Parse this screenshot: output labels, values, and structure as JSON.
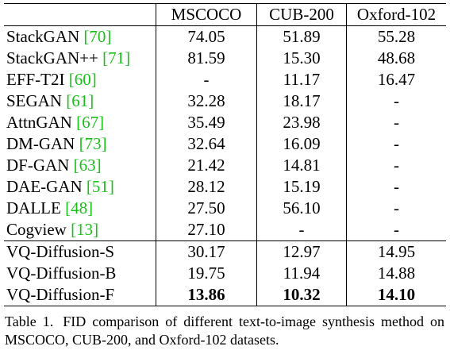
{
  "table": {
    "header": [
      "",
      "MSCOCO",
      "CUB-200",
      "Oxford-102"
    ],
    "groups": [
      [
        {
          "method": "StackGAN",
          "cite": "[70]",
          "mscoco": "74.05",
          "cub": "51.89",
          "oxford": "55.28",
          "best": []
        },
        {
          "method": "StackGAN++",
          "cite": "[71]",
          "mscoco": "81.59",
          "cub": "15.30",
          "oxford": "48.68",
          "best": []
        },
        {
          "method": "EFF-T2I",
          "cite": "[60]",
          "mscoco": "-",
          "cub": "11.17",
          "oxford": "16.47",
          "best": []
        },
        {
          "method": "SEGAN",
          "cite": "[61]",
          "mscoco": "32.28",
          "cub": "18.17",
          "oxford": "-",
          "best": []
        },
        {
          "method": "AttnGAN",
          "cite": "[67]",
          "mscoco": "35.49",
          "cub": "23.98",
          "oxford": "-",
          "best": []
        },
        {
          "method": "DM-GAN",
          "cite": "[73]",
          "mscoco": "32.64",
          "cub": "16.09",
          "oxford": "-",
          "best": []
        },
        {
          "method": "DF-GAN",
          "cite": "[63]",
          "mscoco": "21.42",
          "cub": "14.81",
          "oxford": "-",
          "best": []
        },
        {
          "method": "DAE-GAN",
          "cite": "[51]",
          "mscoco": "28.12",
          "cub": "15.19",
          "oxford": "-",
          "best": []
        },
        {
          "method": "DALLE",
          "cite": "[48]",
          "mscoco": "27.50",
          "cub": "56.10",
          "oxford": "-",
          "best": []
        },
        {
          "method": "Cogview",
          "cite": "[13]",
          "mscoco": "27.10",
          "cub": "-",
          "oxford": "-",
          "best": []
        }
      ],
      [
        {
          "method": "VQ-Diffusion-S",
          "cite": "",
          "mscoco": "30.17",
          "cub": "12.97",
          "oxford": "14.95",
          "best": []
        },
        {
          "method": "VQ-Diffusion-B",
          "cite": "",
          "mscoco": "19.75",
          "cub": "11.94",
          "oxford": "14.88",
          "best": []
        },
        {
          "method": "VQ-Diffusion-F",
          "cite": "",
          "mscoco": "13.86",
          "cub": "10.32",
          "oxford": "14.10",
          "best": [
            "mscoco",
            "cub",
            "oxford"
          ]
        }
      ]
    ]
  },
  "caption": {
    "label": "Table 1.",
    "text": "FID comparison of different text-to-image synthesis method on MSCOCO, CUB-200, and Oxford-102 datasets."
  },
  "colors": {
    "citation": "#19c219",
    "text": "#000000",
    "background": "#ffffff"
  }
}
